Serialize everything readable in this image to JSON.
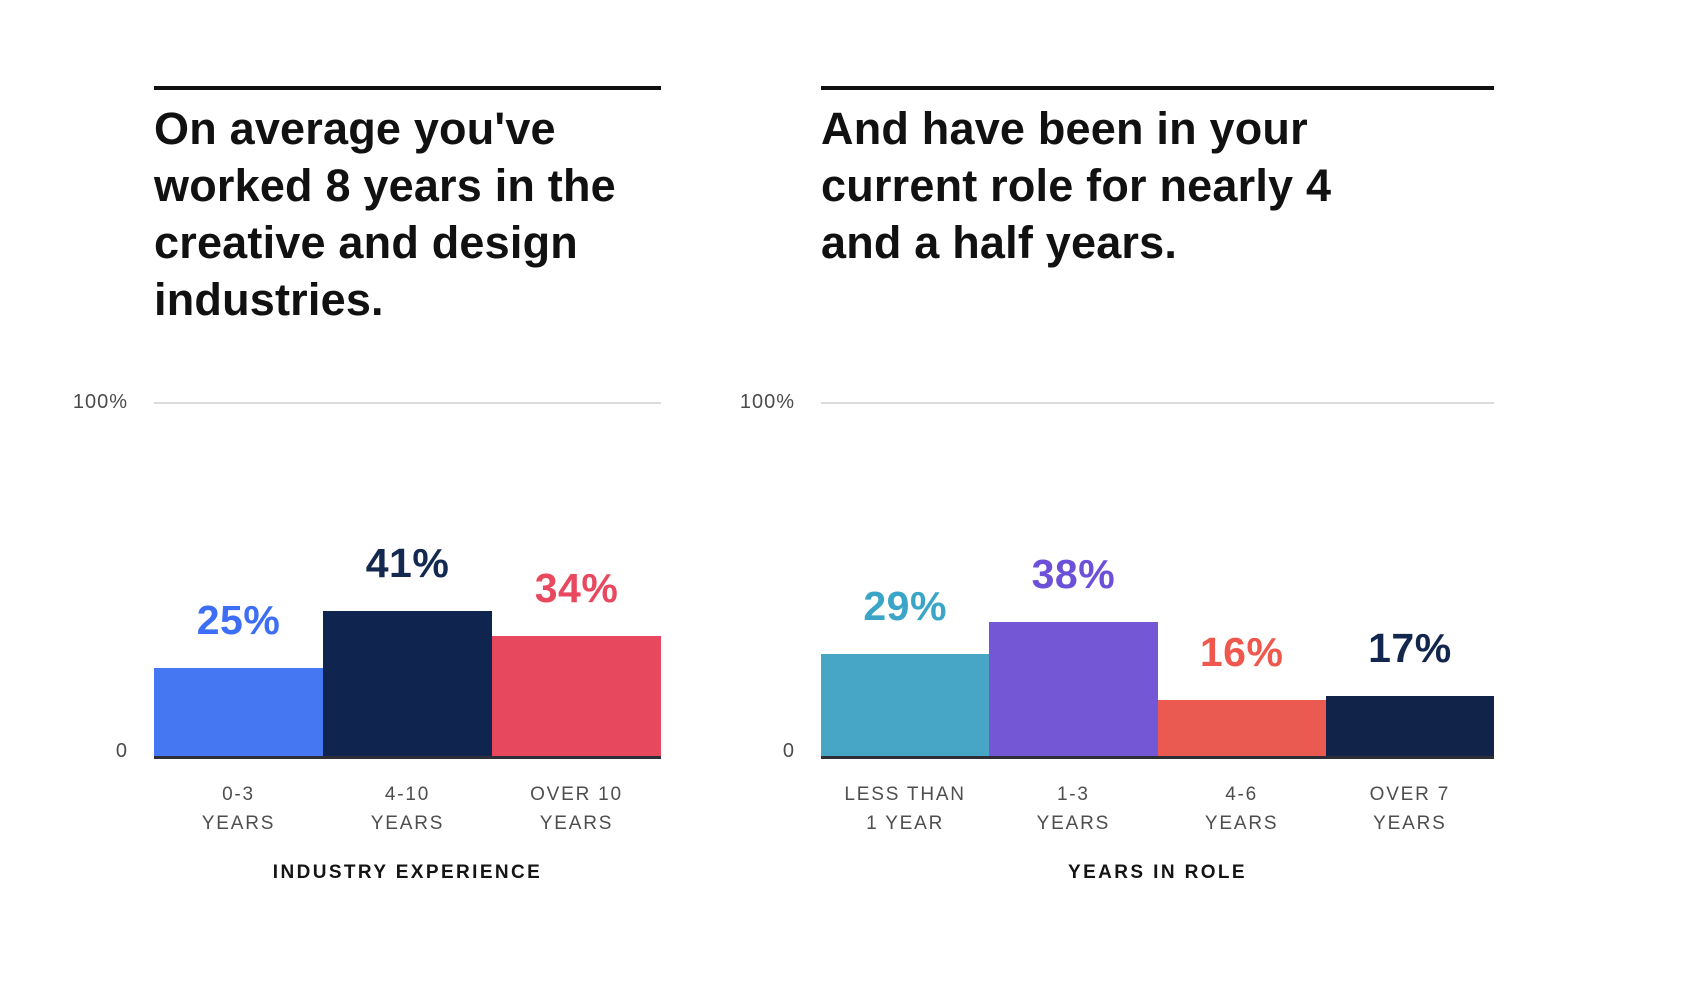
{
  "page": {
    "background": "#ffffff",
    "text_color": "#111111"
  },
  "chart_data": [
    {
      "type": "bar",
      "title": "On average you've\nworked 8 years in the\ncreative and design\nindustries.",
      "categories": [
        "0-3\nYEARS",
        "4-10\nYEARS",
        "OVER 10\nYEARS"
      ],
      "values": [
        25,
        41,
        34
      ],
      "data_labels": [
        "25%",
        "41%",
        "34%"
      ],
      "bar_colors": [
        "#4677F3",
        "#102450",
        "#E8485D"
      ],
      "label_colors": [
        "#3D6EF7",
        "#13294F",
        "#E9495E"
      ],
      "xlabel": "INDUSTRY EXPERIENCE",
      "ylabel": "",
      "ylim": [
        0,
        100
      ],
      "yticks": [
        "100%",
        "0"
      ],
      "grid": "single light gridline at 100%",
      "legend": false
    },
    {
      "type": "bar",
      "title": "And have been in your\ncurrent role for nearly 4\nand a half years.",
      "categories": [
        "LESS THAN\n1 YEAR",
        "1-3\nYEARS",
        "4-6\nYEARS",
        "OVER 7\nYEARS"
      ],
      "values": [
        29,
        38,
        16,
        17
      ],
      "data_labels": [
        "29%",
        "38%",
        "16%",
        "17%"
      ],
      "bar_colors": [
        "#47A6C5",
        "#7457D4",
        "#EA5A50",
        "#12234A"
      ],
      "label_colors": [
        "#3BA5C8",
        "#6C50D8",
        "#F0584D",
        "#13274E"
      ],
      "xlabel": "YEARS IN ROLE",
      "ylabel": "",
      "ylim": [
        0,
        100
      ],
      "yticks": [
        "100%",
        "0"
      ],
      "grid": "single light gridline at 100%",
      "legend": false
    }
  ]
}
